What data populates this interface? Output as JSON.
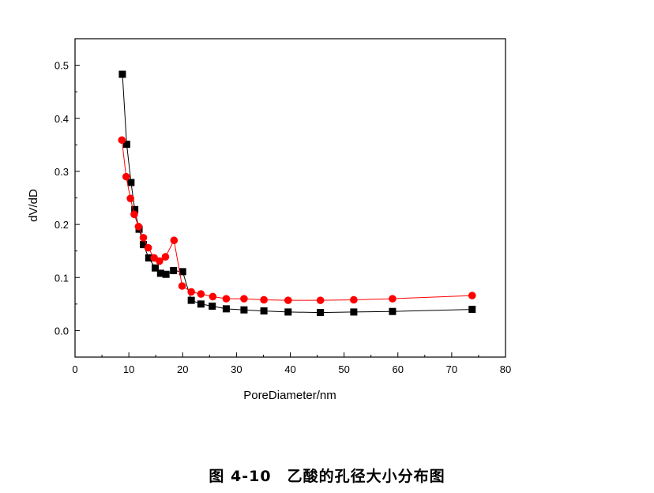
{
  "caption": "图 4-10　乙酸的孔径大小分布图",
  "chart_data": {
    "type": "line",
    "xlabel": "PoreDiameter/nm",
    "ylabel": "dV/dD",
    "xlim": [
      0,
      80
    ],
    "ylim": [
      -0.05,
      0.55
    ],
    "xticks": [
      0,
      10,
      20,
      30,
      40,
      50,
      60,
      70,
      80
    ],
    "yticks": [
      0.0,
      0.1,
      0.2,
      0.3,
      0.4,
      0.5
    ],
    "grid": false,
    "series": [
      {
        "color": "#000000",
        "marker": "square",
        "x": [
          8.8,
          9.6,
          10.4,
          11.1,
          11.9,
          12.7,
          13.7,
          14.9,
          15.9,
          16.9,
          18.3,
          20.0,
          21.6,
          23.4,
          25.5,
          28.1,
          31.4,
          35.1,
          39.6,
          45.6,
          51.8,
          59.0,
          73.8
        ],
        "values": [
          0.483,
          0.351,
          0.279,
          0.228,
          0.191,
          0.162,
          0.137,
          0.118,
          0.108,
          0.106,
          0.113,
          0.111,
          0.057,
          0.05,
          0.046,
          0.041,
          0.039,
          0.037,
          0.035,
          0.034,
          0.035,
          0.036,
          0.04
        ]
      },
      {
        "color": "#ff0000",
        "marker": "circle",
        "x": [
          8.7,
          9.5,
          10.3,
          11.0,
          11.8,
          12.7,
          13.6,
          14.7,
          15.7,
          16.8,
          18.4,
          19.9,
          21.6,
          23.4,
          25.6,
          28.1,
          31.4,
          35.1,
          39.6,
          45.6,
          51.8,
          59.0,
          73.8
        ],
        "values": [
          0.359,
          0.29,
          0.249,
          0.219,
          0.196,
          0.175,
          0.156,
          0.137,
          0.131,
          0.139,
          0.17,
          0.084,
          0.073,
          0.069,
          0.064,
          0.06,
          0.06,
          0.058,
          0.057,
          0.057,
          0.058,
          0.06,
          0.066
        ]
      }
    ]
  }
}
